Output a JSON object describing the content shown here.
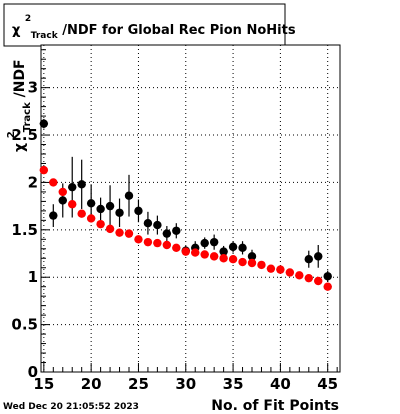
{
  "chart_data": {
    "type": "scatter",
    "title": {
      "prefix": "χ",
      "superscript": "2",
      "subscript": "Track",
      "suffix": "/NDF for Global Rec Pion NoHits"
    },
    "xlabel": "No. of Fit Points",
    "ylabel": {
      "prefix": "χ",
      "superscript": "2",
      "subscript": "Track",
      "suffix": "/NDF"
    },
    "xlim": [
      14.7,
      46.3
    ],
    "ylim": [
      0,
      3.45
    ],
    "xticks": [
      15,
      20,
      25,
      30,
      35,
      40,
      45
    ],
    "yticks": [
      0,
      0.5,
      1,
      1.5,
      2,
      2.5,
      3
    ],
    "ytick_labels": [
      "0",
      "0.5",
      "1",
      "1.5",
      "2",
      "2.5",
      "3"
    ],
    "grid": true,
    "series": [
      {
        "color": "#000000",
        "x": [
          15,
          16,
          17,
          18,
          19,
          20,
          21,
          22,
          23,
          24,
          25,
          26,
          27,
          28,
          29,
          30,
          31,
          32,
          33,
          34,
          35,
          36,
          37,
          38,
          39,
          40,
          41,
          42,
          43,
          44,
          45
        ],
        "y": [
          2.62,
          1.65,
          1.81,
          1.95,
          1.98,
          1.78,
          1.72,
          1.75,
          1.68,
          1.86,
          1.7,
          1.57,
          1.55,
          1.46,
          1.49,
          1.28,
          1.31,
          1.36,
          1.37,
          1.27,
          1.32,
          1.31,
          1.22,
          null,
          null,
          null,
          null,
          null,
          1.19,
          1.22,
          1.01
        ],
        "yerr": [
          0.05,
          0.12,
          0.18,
          0.32,
          0.26,
          0.2,
          0.12,
          0.22,
          0.15,
          0.22,
          0.12,
          0.12,
          0.1,
          0.08,
          0.08,
          0.05,
          0.07,
          0.06,
          0.08,
          0.06,
          0.06,
          0.07,
          0.07,
          null,
          null,
          null,
          null,
          null,
          0.09,
          0.12,
          0.06
        ]
      },
      {
        "color": "#ff0000",
        "x": [
          15,
          16,
          17,
          18,
          19,
          20,
          21,
          22,
          23,
          24,
          25,
          26,
          27,
          28,
          29,
          30,
          31,
          32,
          33,
          34,
          35,
          36,
          37,
          38,
          39,
          40,
          41,
          42,
          43,
          44,
          45
        ],
        "y": [
          2.13,
          2.0,
          1.9,
          1.77,
          1.67,
          1.62,
          1.56,
          1.51,
          1.47,
          1.46,
          1.4,
          1.37,
          1.36,
          1.34,
          1.31,
          1.27,
          1.26,
          1.24,
          1.22,
          1.2,
          1.19,
          1.16,
          1.15,
          1.13,
          1.09,
          1.08,
          1.05,
          1.02,
          0.99,
          0.96,
          0.9
        ],
        "yerr": [
          0.02,
          0.02,
          0.02,
          0.02,
          0.02,
          0.02,
          0.02,
          0.02,
          0.02,
          0.02,
          0.02,
          0.02,
          0.02,
          0.02,
          0.02,
          0.02,
          0.02,
          0.02,
          0.02,
          0.02,
          0.02,
          0.02,
          0.02,
          0.02,
          0.02,
          0.02,
          0.02,
          0.02,
          0.02,
          0.02,
          0.03
        ]
      }
    ]
  },
  "footer": {
    "timestamp": "Wed Dec 20 21:05:52 2023"
  }
}
